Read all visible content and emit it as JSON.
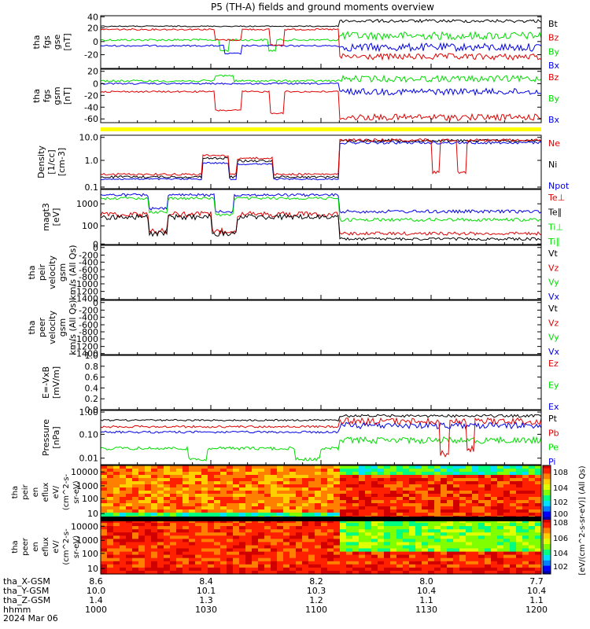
{
  "title": "P5 (TH-A) fields and ground moments overview",
  "colors": {
    "black": "#000000",
    "red": "#e00000",
    "green": "#00dd00",
    "blue": "#0000ee",
    "yellow": "#ffff00",
    "frame": "#000000"
  },
  "chart_data": {
    "type": "line",
    "x_range": [
      "10:00",
      "12:00"
    ],
    "panels": [
      {
        "key": "fgs_gse",
        "ylabel": [
          "tha",
          "fgs",
          "gse",
          "[nT]"
        ],
        "scale": "linear",
        "ylim": [
          -40,
          42
        ],
        "ticks": [
          "40",
          "20",
          "0",
          "-20"
        ],
        "series": [
          {
            "name": "Bt",
            "color": "black"
          },
          {
            "name": "Bz",
            "color": "red"
          },
          {
            "name": "By",
            "color": "green"
          },
          {
            "name": "Bx",
            "color": "blue"
          }
        ]
      },
      {
        "key": "fgs_gsm",
        "ylabel": [
          "tha",
          "fgs",
          "gsm",
          "[nT]"
        ],
        "scale": "linear",
        "ylim": [
          -75,
          28
        ],
        "ticks": [
          "20",
          "0",
          "-20",
          "-40",
          "-60"
        ],
        "series": [
          {
            "name": "Bz",
            "color": "red"
          },
          {
            "name": "By",
            "color": "green"
          },
          {
            "name": "Bx",
            "color": "blue"
          }
        ]
      },
      {
        "key": "density",
        "ylabel": [
          "Density",
          "[1/cc]",
          "[cm-3]"
        ],
        "scale": "log",
        "ylim": [
          0.1,
          10
        ],
        "ticks": [
          "10.0",
          "1.0",
          "0.1"
        ],
        "series": [
          {
            "name": "Ne",
            "color": "red"
          },
          {
            "name": "Ni",
            "color": "black"
          },
          {
            "name": "Npot",
            "color": "blue"
          }
        ]
      },
      {
        "key": "temperature",
        "ylabel": [
          "magt3",
          "[eV]"
        ],
        "scale": "log",
        "ylim": [
          10,
          3000
        ],
        "ticks": [
          "1000",
          "100",
          "0"
        ],
        "series": [
          {
            "name": "Te⊥",
            "color": "red"
          },
          {
            "name": "Te∥",
            "color": "black"
          },
          {
            "name": "Ti⊥",
            "color": "green"
          },
          {
            "name": "Ti∥",
            "color": "green"
          }
        ]
      },
      {
        "key": "peir_velocity",
        "ylabel": [
          "tha",
          "peir",
          "velocity",
          "gsm",
          "km/s (All Qs)"
        ],
        "scale": "linear",
        "ylim": [
          -1400,
          0
        ],
        "ticks": [
          "0",
          "-200",
          "-400",
          "-600",
          "-800",
          "-1000",
          "-1200",
          "-1400"
        ],
        "series": [
          {
            "name": "Vt",
            "color": "black"
          },
          {
            "name": "Vz",
            "color": "red"
          },
          {
            "name": "Vy",
            "color": "green"
          },
          {
            "name": "Vx",
            "color": "blue"
          }
        ]
      },
      {
        "key": "peer_velocity",
        "ylabel": [
          "tha",
          "peer",
          "velocity",
          "gsm",
          "km/s (All Qs)"
        ],
        "scale": "linear",
        "ylim": [
          -1400,
          0
        ],
        "ticks": [
          "0",
          "-200",
          "-400",
          "-600",
          "-800",
          "-1000",
          "-1200",
          "-1400"
        ],
        "series": [
          {
            "name": "Vt",
            "color": "black"
          },
          {
            "name": "Vz",
            "color": "red"
          },
          {
            "name": "Vy",
            "color": "green"
          },
          {
            "name": "Vx",
            "color": "blue"
          }
        ]
      },
      {
        "key": "efield",
        "ylabel": [
          "E=-VxB",
          "[mV/m]"
        ],
        "scale": "linear",
        "ylim": [
          0,
          1
        ],
        "ticks": [
          "1.0",
          "0.8",
          "0.6",
          "0.4",
          "0.2",
          "0.0"
        ],
        "series": [
          {
            "name": "Ez",
            "color": "red"
          },
          {
            "name": "Ey",
            "color": "green"
          },
          {
            "name": "Ex",
            "color": "blue"
          }
        ]
      },
      {
        "key": "pressure",
        "ylabel": [
          "Pressure",
          "[nPa]"
        ],
        "scale": "log",
        "ylim": [
          0.005,
          1.2
        ],
        "ticks": [
          "1.00",
          "0.10",
          "0.01"
        ],
        "series": [
          {
            "name": "Pt",
            "color": "black"
          },
          {
            "name": "Pb",
            "color": "red"
          },
          {
            "name": "Pe",
            "color": "green"
          },
          {
            "name": "Pi",
            "color": "blue"
          }
        ]
      }
    ],
    "spectrograms": [
      {
        "key": "peir_eflux",
        "ylabel": [
          "tha",
          "peir",
          "en",
          "eflux",
          "eV/",
          "(cm^2-s-",
          "sr-eV)"
        ],
        "scale": "log",
        "ylim": [
          5,
          20000
        ],
        "ticks": [
          "10000",
          "1000",
          "100",
          "10"
        ]
      },
      {
        "key": "peer_eflux",
        "ylabel": [
          "tha",
          "peer",
          "en",
          "eflux",
          "eV/",
          "(cm^2-s-",
          "sr-eV)"
        ],
        "scale": "log",
        "ylim": [
          5,
          20000
        ],
        "ticks": [
          "10000",
          "1000",
          "100",
          "10"
        ]
      }
    ],
    "colorbar": {
      "label": "[eV/(cm^2-s-sr-eV)] (All Qs)",
      "upper_ticks": [
        "10^8",
        "10^4",
        "10^2",
        "10^0"
      ],
      "lower_ticks": [
        "10^8",
        "10^6",
        "10^4",
        "10^2"
      ]
    },
    "x_axis": {
      "row_labels": [
        "tha_X-GSM",
        "tha_Y-GSM",
        "tha_Z-GSM",
        "hhmm",
        "2024 Mar 06"
      ],
      "columns": [
        {
          "values": [
            "8.6",
            "10.0",
            "1.4",
            "1000"
          ]
        },
        {
          "values": [
            "8.4",
            "10.1",
            "1.3",
            "1030"
          ]
        },
        {
          "values": [
            "8.2",
            "10.3",
            "1.2",
            "1100"
          ]
        },
        {
          "values": [
            "8.0",
            "10.4",
            "1.1",
            "1130"
          ]
        },
        {
          "values": [
            "7.7",
            "10.4",
            "1.1",
            "1200"
          ]
        }
      ]
    }
  }
}
